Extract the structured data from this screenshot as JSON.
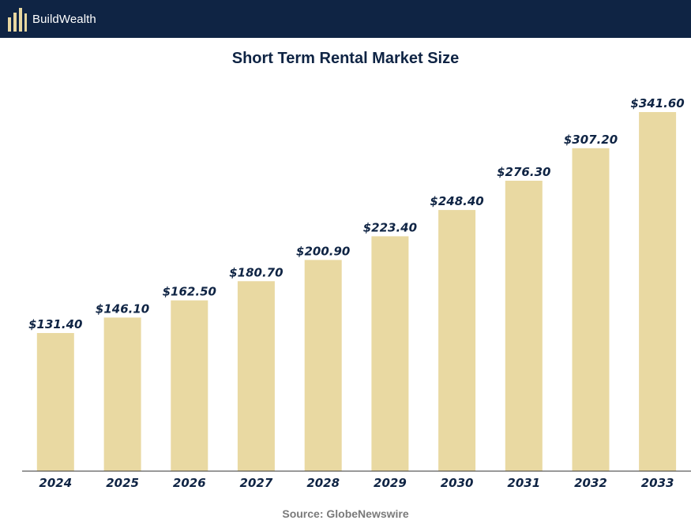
{
  "header": {
    "brand_name": "BuildWealth",
    "brand_colors": {
      "background": "#0f2444",
      "logo_gold": "#e8d7a0"
    }
  },
  "source": "Source: GlobeNewswire",
  "chart_data": {
    "type": "bar",
    "title": "Short Term Rental Market Size",
    "xlabel": "",
    "ylabel": "",
    "categories": [
      "2024",
      "2025",
      "2026",
      "2027",
      "2028",
      "2029",
      "2030",
      "2031",
      "2032",
      "2033"
    ],
    "values": [
      131.4,
      146.1,
      162.5,
      180.7,
      200.9,
      223.4,
      248.4,
      276.3,
      307.2,
      341.6
    ],
    "data_labels": [
      "$131.40",
      "$146.10",
      "$162.50",
      "$180.70",
      "$200.90",
      "$223.40",
      "$248.40",
      "$276.30",
      "$307.20",
      "$341.60"
    ],
    "ylim": [
      0,
      380
    ],
    "grid": false,
    "legend": "none",
    "bar_color": "#e9d9a2",
    "text_color": "#0f2444"
  }
}
